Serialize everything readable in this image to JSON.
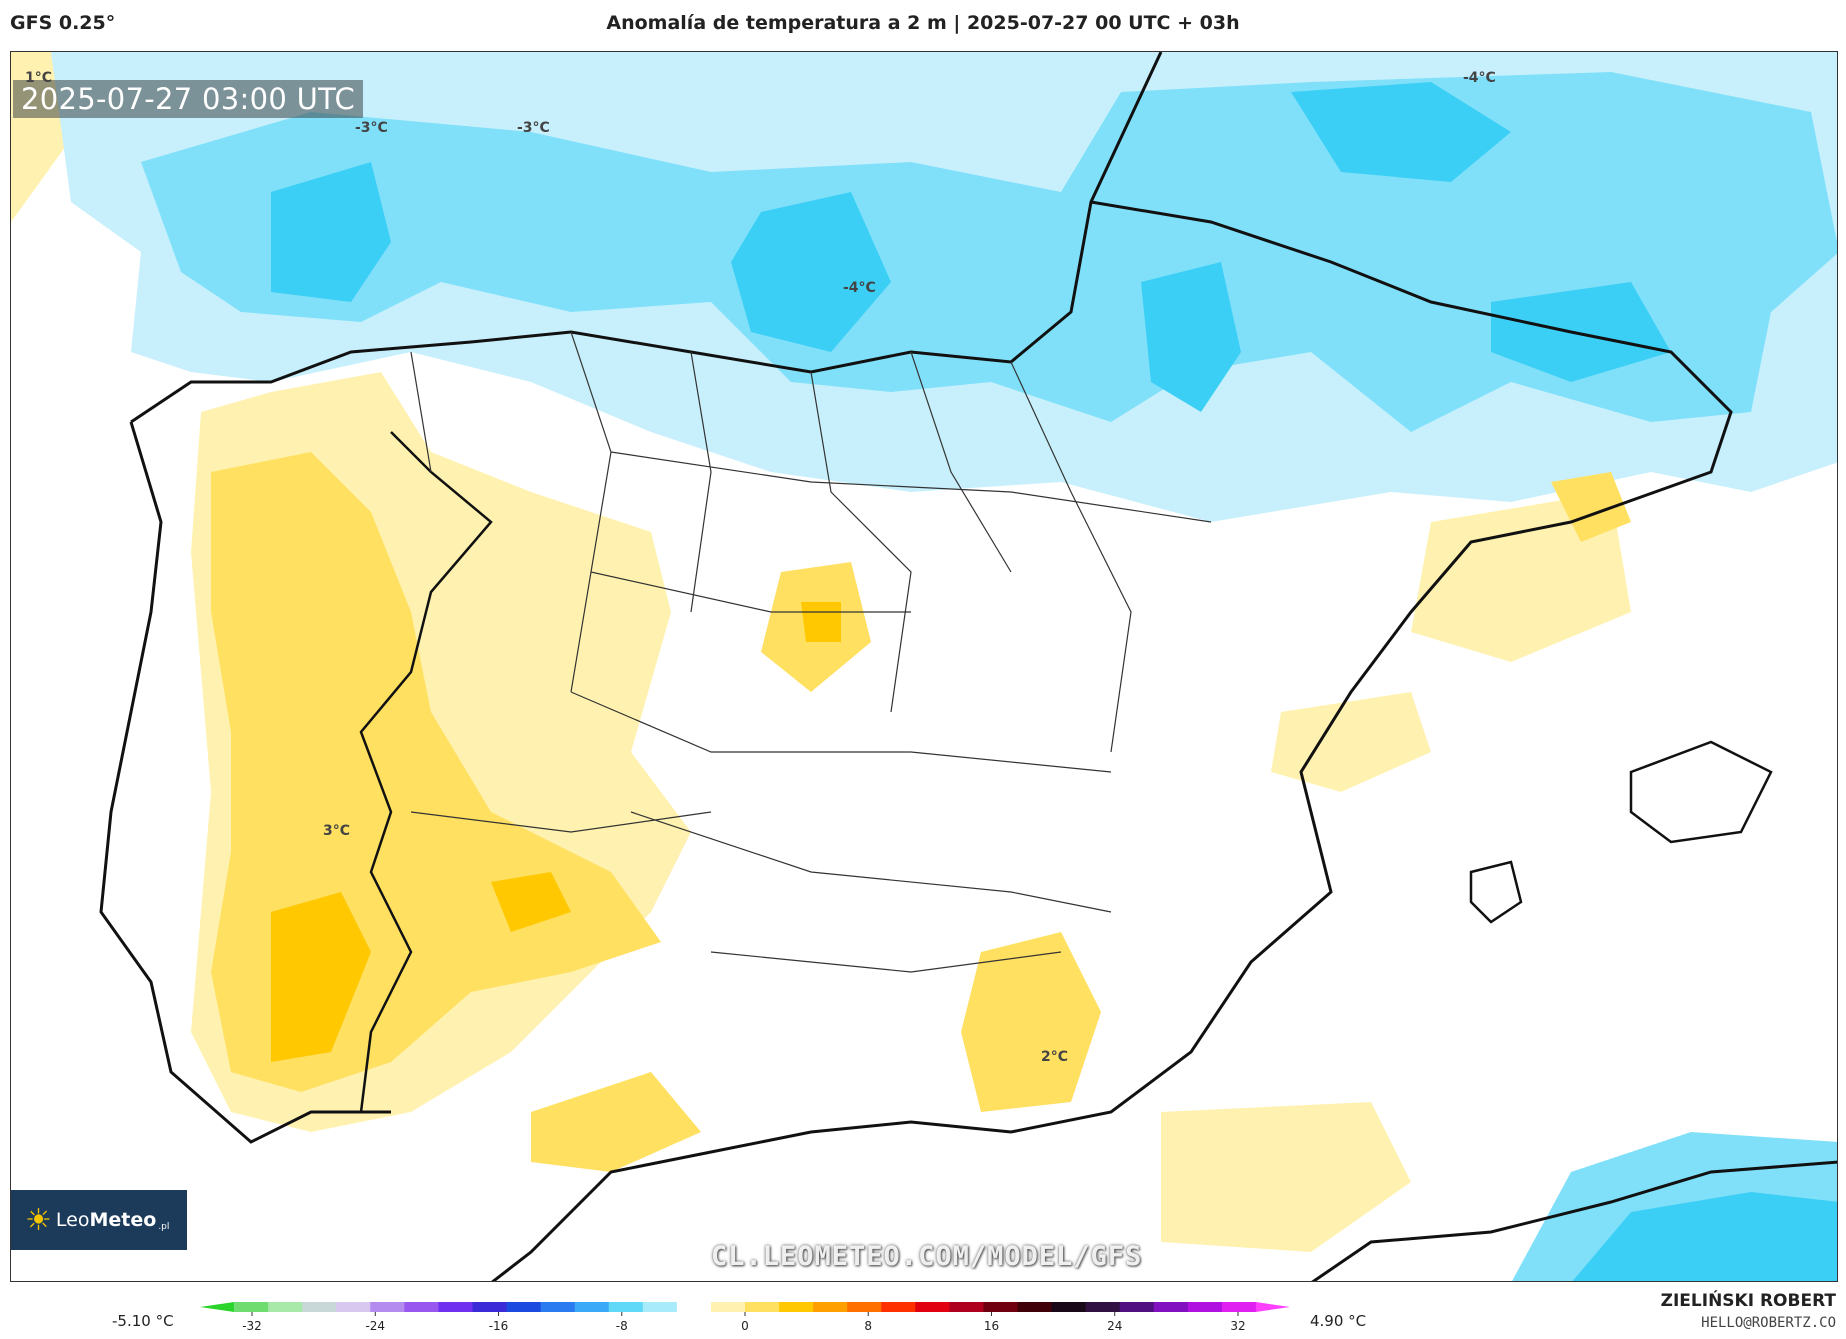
{
  "header": {
    "model": "GFS 0.25°",
    "title": "Anomalía de temperatura a 2 m | 2025-07-27 00 UTC + 03h"
  },
  "map": {
    "valid_time": "2025-07-27 03:00 UTC",
    "watermark": "CL.LEOMETEO.COM/MODEL/GFS",
    "logo": {
      "name_light": "Leo",
      "name_bold": "Meteo",
      "suffix": ".pl"
    },
    "contour_labels": [
      "1°C",
      "-3°C",
      "-3°C",
      "-4°C",
      "-4°C",
      "3°C",
      "2°C"
    ]
  },
  "colorbar": {
    "min_label": "-5.10 °C",
    "max_label": "4.90 °C",
    "ticks": [
      "-32",
      "-24",
      "-16",
      "-8",
      "0",
      "8",
      "16",
      "24",
      "32"
    ],
    "colors": [
      "#2bd42b",
      "#6fdc6f",
      "#a8e8a8",
      "#c8d8d8",
      "#d8c8f0",
      "#b48cf0",
      "#9858f0",
      "#7030f0",
      "#3a2ad8",
      "#1a4ae0",
      "#2a7af0",
      "#3aaaf8",
      "#60d8f8",
      "#a8ecfc",
      "#ffffff",
      "#fff2b0",
      "#ffe060",
      "#ffc800",
      "#ffa000",
      "#ff7000",
      "#ff3000",
      "#e00010",
      "#b00020",
      "#700010",
      "#400008",
      "#180818",
      "#301040",
      "#501080",
      "#8010c0",
      "#b010e0",
      "#e020f0",
      "#ff40ff"
    ]
  },
  "footer": {
    "author": "ZIELIŃSKI ROBERT",
    "email": "HELLO@ROBERTZ.CO"
  }
}
